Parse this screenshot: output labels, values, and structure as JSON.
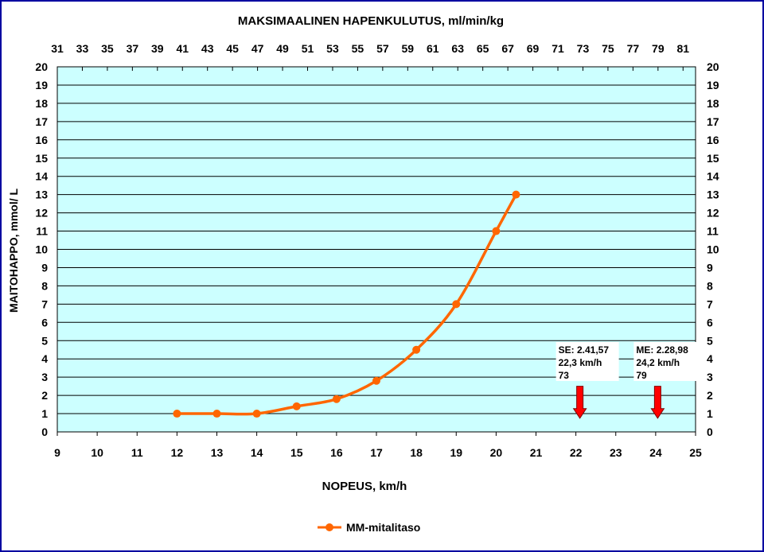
{
  "chart_data": {
    "type": "line",
    "title": "MAKSIMAALINEN HAPENKULUTUS, ml/min/kg",
    "xlabel": "NOPEUS, km/h",
    "ylabel": "MAITOHAPPO, mmol/ L",
    "xlim": [
      9,
      25
    ],
    "ylim": [
      0,
      20
    ],
    "x_ticks": [
      9,
      10,
      11,
      12,
      13,
      14,
      15,
      16,
      17,
      18,
      19,
      20,
      21,
      22,
      23,
      24,
      25
    ],
    "y_ticks": [
      0,
      1,
      2,
      3,
      4,
      5,
      6,
      7,
      8,
      9,
      10,
      11,
      12,
      13,
      14,
      15,
      16,
      17,
      18,
      19,
      20
    ],
    "top_axis_ticks": [
      "31",
      "33",
      "35",
      "37",
      "39",
      "41",
      "43",
      "45",
      "47",
      "49",
      "51",
      "53",
      "55",
      "57",
      "59",
      "61",
      "63",
      "65",
      "67",
      "69",
      "71",
      "73",
      "75",
      "77",
      "79",
      "81"
    ],
    "grid": true,
    "legend": "bottom",
    "colors": {
      "plot_background": "#ccffff",
      "series": "#ff6600",
      "arrow": "#ff0000",
      "frame": "#0000a0"
    },
    "series": [
      {
        "name": "MM-mitalitaso",
        "x": [
          12,
          13,
          14,
          15,
          16,
          17,
          18,
          19,
          20,
          20.5
        ],
        "y": [
          1.0,
          1.0,
          1.0,
          1.4,
          1.8,
          2.8,
          4.5,
          7.0,
          11.0,
          13.0
        ]
      }
    ],
    "annotations": [
      {
        "x": 22.1,
        "lines": [
          "SE: 2.41,57",
          "22,3 km/h",
          "73"
        ]
      },
      {
        "x": 24.05,
        "lines": [
          "ME: 2.28,98",
          "24,2 km/h",
          "79"
        ]
      }
    ]
  }
}
